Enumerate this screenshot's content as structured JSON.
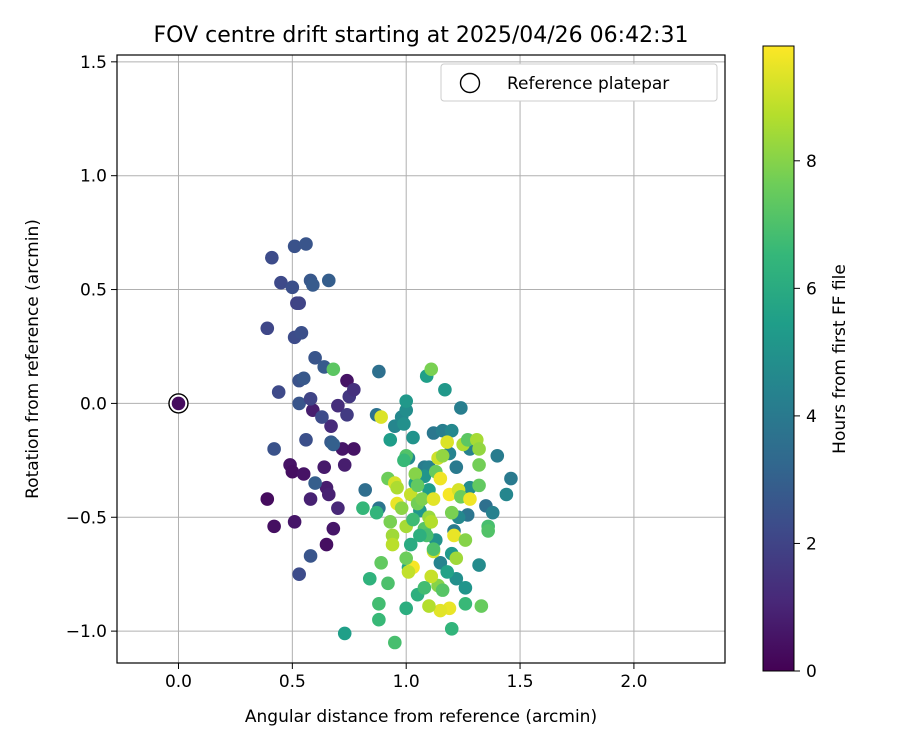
{
  "chart_data": {
    "type": "scatter",
    "title": "FOV centre drift starting at 2025/04/26 06:42:31",
    "xlabel": "Angular distance from reference (arcmin)",
    "ylabel": "Rotation from reference (arcmin)",
    "xlim": [
      -0.27,
      2.4
    ],
    "ylim": [
      -1.14,
      1.53
    ],
    "xticks": [
      0.0,
      0.5,
      1.0,
      1.5,
      2.0
    ],
    "xtick_labels": [
      "0.0",
      "0.5",
      "1.0",
      "1.5",
      "2.0"
    ],
    "yticks": [
      -1.0,
      -0.5,
      0.0,
      0.5,
      1.0,
      1.5
    ],
    "ytick_labels": [
      "−1.0",
      "−0.5",
      "0.0",
      "0.5",
      "1.0",
      "1.5"
    ],
    "grid": true,
    "legend": {
      "position": "top-right",
      "entries": [
        "Reference platepar"
      ]
    },
    "reference_point": {
      "x": 0.0,
      "y": 0.0,
      "c": 0.3
    },
    "colorbar": {
      "label": "Hours from first FF file",
      "colormap": "viridis",
      "range": [
        0,
        9.8
      ],
      "ticks": [
        0,
        2,
        4,
        6,
        8
      ],
      "tick_labels": [
        "0",
        "2",
        "4",
        "6",
        "8"
      ]
    },
    "points": [
      {
        "x": 0.39,
        "y": -0.42,
        "c": 0.3
      },
      {
        "x": 0.42,
        "y": -0.54,
        "c": 0.4
      },
      {
        "x": 0.49,
        "y": -0.27,
        "c": 0.5
      },
      {
        "x": 0.5,
        "y": -0.3,
        "c": 0.4
      },
      {
        "x": 0.51,
        "y": -0.52,
        "c": 0.6
      },
      {
        "x": 0.55,
        "y": -0.31,
        "c": 0.5
      },
      {
        "x": 0.59,
        "y": -0.03,
        "c": 0.8
      },
      {
        "x": 0.58,
        "y": -0.42,
        "c": 0.9
      },
      {
        "x": 0.64,
        "y": -0.28,
        "c": 0.7
      },
      {
        "x": 0.65,
        "y": -0.37,
        "c": 0.8
      },
      {
        "x": 0.66,
        "y": -0.4,
        "c": 0.9
      },
      {
        "x": 0.65,
        "y": -0.62,
        "c": 0.4
      },
      {
        "x": 0.68,
        "y": -0.55,
        "c": 0.6
      },
      {
        "x": 0.7,
        "y": -0.46,
        "c": 1.1
      },
      {
        "x": 0.72,
        "y": -0.2,
        "c": 0.6
      },
      {
        "x": 0.73,
        "y": -0.27,
        "c": 0.8
      },
      {
        "x": 0.74,
        "y": 0.1,
        "c": 0.5
      },
      {
        "x": 0.77,
        "y": -0.2,
        "c": 0.5
      },
      {
        "x": 0.7,
        "y": -0.01,
        "c": 1.3
      },
      {
        "x": 0.67,
        "y": -0.1,
        "c": 1.2
      },
      {
        "x": 0.75,
        "y": 0.03,
        "c": 1.6
      },
      {
        "x": 0.77,
        "y": 0.06,
        "c": 1.4
      },
      {
        "x": 0.74,
        "y": -0.05,
        "c": 1.7
      },
      {
        "x": 0.41,
        "y": 0.64,
        "c": 2.3
      },
      {
        "x": 0.51,
        "y": 0.69,
        "c": 2.5
      },
      {
        "x": 0.56,
        "y": 0.7,
        "c": 2.6
      },
      {
        "x": 0.45,
        "y": 0.53,
        "c": 2.2
      },
      {
        "x": 0.5,
        "y": 0.51,
        "c": 2.4
      },
      {
        "x": 0.58,
        "y": 0.54,
        "c": 2.7
      },
      {
        "x": 0.59,
        "y": 0.52,
        "c": 2.8
      },
      {
        "x": 0.66,
        "y": 0.54,
        "c": 2.9
      },
      {
        "x": 0.39,
        "y": 0.33,
        "c": 2.1
      },
      {
        "x": 0.52,
        "y": 0.44,
        "c": 1.9
      },
      {
        "x": 0.53,
        "y": 0.44,
        "c": 2.0
      },
      {
        "x": 0.51,
        "y": 0.29,
        "c": 2.3
      },
      {
        "x": 0.54,
        "y": 0.31,
        "c": 2.4
      },
      {
        "x": 0.6,
        "y": 0.2,
        "c": 2.6
      },
      {
        "x": 0.64,
        "y": 0.16,
        "c": 2.8
      },
      {
        "x": 0.53,
        "y": 0.1,
        "c": 2.5
      },
      {
        "x": 0.55,
        "y": 0.11,
        "c": 2.7
      },
      {
        "x": 0.44,
        "y": 0.05,
        "c": 2.2
      },
      {
        "x": 0.53,
        "y": 0.0,
        "c": 2.6
      },
      {
        "x": 0.58,
        "y": 0.02,
        "c": 2.0
      },
      {
        "x": 0.63,
        "y": -0.06,
        "c": 2.3
      },
      {
        "x": 0.67,
        "y": -0.17,
        "c": 2.8
      },
      {
        "x": 0.42,
        "y": -0.2,
        "c": 2.5
      },
      {
        "x": 0.56,
        "y": -0.16,
        "c": 2.4
      },
      {
        "x": 0.6,
        "y": -0.35,
        "c": 2.9
      },
      {
        "x": 0.58,
        "y": -0.67,
        "c": 2.6
      },
      {
        "x": 0.53,
        "y": -0.75,
        "c": 2.3
      },
      {
        "x": 0.68,
        "y": -0.18,
        "c": 3.0
      },
      {
        "x": 0.88,
        "y": 0.14,
        "c": 3.6
      },
      {
        "x": 0.87,
        "y": -0.05,
        "c": 3.7
      },
      {
        "x": 0.82,
        "y": -0.38,
        "c": 3.5
      },
      {
        "x": 0.88,
        "y": -0.46,
        "c": 3.8
      },
      {
        "x": 0.95,
        "y": -0.1,
        "c": 4.5
      },
      {
        "x": 0.98,
        "y": -0.06,
        "c": 4.6
      },
      {
        "x": 1.0,
        "y": -0.03,
        "c": 4.8
      },
      {
        "x": 1.0,
        "y": 0.01,
        "c": 5.2
      },
      {
        "x": 0.99,
        "y": -0.09,
        "c": 4.9
      },
      {
        "x": 0.93,
        "y": -0.16,
        "c": 5.4
      },
      {
        "x": 1.03,
        "y": -0.15,
        "c": 5.0
      },
      {
        "x": 1.01,
        "y": -0.24,
        "c": 4.7
      },
      {
        "x": 1.08,
        "y": -0.28,
        "c": 4.1
      },
      {
        "x": 1.1,
        "y": -0.28,
        "c": 4.3
      },
      {
        "x": 1.12,
        "y": -0.13,
        "c": 3.9
      },
      {
        "x": 1.16,
        "y": -0.12,
        "c": 4.2
      },
      {
        "x": 1.2,
        "y": -0.12,
        "c": 4.6
      },
      {
        "x": 1.19,
        "y": -0.22,
        "c": 4.4
      },
      {
        "x": 1.22,
        "y": -0.28,
        "c": 4.0
      },
      {
        "x": 1.24,
        "y": -0.02,
        "c": 4.2
      },
      {
        "x": 1.17,
        "y": 0.06,
        "c": 5.2
      },
      {
        "x": 1.09,
        "y": 0.12,
        "c": 5.5
      },
      {
        "x": 1.28,
        "y": -0.2,
        "c": 4.3
      },
      {
        "x": 1.27,
        "y": -0.49,
        "c": 3.8
      },
      {
        "x": 1.35,
        "y": -0.45,
        "c": 3.6
      },
      {
        "x": 1.4,
        "y": -0.23,
        "c": 4.1
      },
      {
        "x": 1.38,
        "y": -0.48,
        "c": 4.3
      },
      {
        "x": 1.44,
        "y": -0.4,
        "c": 4.5
      },
      {
        "x": 1.46,
        "y": -0.33,
        "c": 4.0
      },
      {
        "x": 1.28,
        "y": -0.37,
        "c": 4.8
      },
      {
        "x": 1.23,
        "y": -0.5,
        "c": 4.6
      },
      {
        "x": 1.21,
        "y": -0.56,
        "c": 4.1
      },
      {
        "x": 1.15,
        "y": -0.7,
        "c": 4.4
      },
      {
        "x": 1.22,
        "y": -0.77,
        "c": 4.9
      },
      {
        "x": 1.32,
        "y": -0.71,
        "c": 4.7
      },
      {
        "x": 1.26,
        "y": -0.81,
        "c": 5.1
      },
      {
        "x": 1.2,
        "y": -0.66,
        "c": 5.3
      },
      {
        "x": 1.18,
        "y": -0.74,
        "c": 5.6
      },
      {
        "x": 1.13,
        "y": -0.6,
        "c": 5.0
      },
      {
        "x": 1.06,
        "y": -0.47,
        "c": 5.2
      },
      {
        "x": 1.1,
        "y": -0.38,
        "c": 5.4
      },
      {
        "x": 1.04,
        "y": -0.35,
        "c": 5.6
      },
      {
        "x": 1.08,
        "y": -0.32,
        "c": 5.1
      },
      {
        "x": 0.73,
        "y": -1.01,
        "c": 5.5
      },
      {
        "x": 1.01,
        "y": -0.72,
        "c": 5.8
      },
      {
        "x": 1.02,
        "y": -0.62,
        "c": 6.0
      },
      {
        "x": 1.05,
        "y": -0.84,
        "c": 6.2
      },
      {
        "x": 1.0,
        "y": -0.9,
        "c": 6.1
      },
      {
        "x": 0.84,
        "y": -0.77,
        "c": 6.3
      },
      {
        "x": 0.68,
        "y": 0.15,
        "c": 7.3
      },
      {
        "x": 0.89,
        "y": -0.06,
        "c": 9.3
      },
      {
        "x": 0.92,
        "y": -0.33,
        "c": 7.6
      },
      {
        "x": 0.93,
        "y": -0.52,
        "c": 7.8
      },
      {
        "x": 0.94,
        "y": -0.58,
        "c": 8.4
      },
      {
        "x": 0.94,
        "y": -0.62,
        "c": 8.8
      },
      {
        "x": 0.95,
        "y": -0.35,
        "c": 9.2
      },
      {
        "x": 0.96,
        "y": -0.37,
        "c": 8.6
      },
      {
        "x": 0.96,
        "y": -0.44,
        "c": 9.5
      },
      {
        "x": 0.98,
        "y": -0.46,
        "c": 8.1
      },
      {
        "x": 1.0,
        "y": -0.54,
        "c": 8.5
      },
      {
        "x": 1.0,
        "y": -0.23,
        "c": 7.1
      },
      {
        "x": 1.02,
        "y": -0.4,
        "c": 9.0
      },
      {
        "x": 1.04,
        "y": -0.31,
        "c": 8.0
      },
      {
        "x": 1.05,
        "y": -0.36,
        "c": 7.4
      },
      {
        "x": 1.05,
        "y": -0.44,
        "c": 7.7
      },
      {
        "x": 1.07,
        "y": -0.42,
        "c": 7.9
      },
      {
        "x": 1.08,
        "y": -0.55,
        "c": 7.2
      },
      {
        "x": 1.09,
        "y": -0.58,
        "c": 6.9
      },
      {
        "x": 1.1,
        "y": -0.5,
        "c": 8.3
      },
      {
        "x": 1.11,
        "y": -0.52,
        "c": 8.7
      },
      {
        "x": 1.12,
        "y": -0.42,
        "c": 9.4
      },
      {
        "x": 1.13,
        "y": -0.3,
        "c": 7.5
      },
      {
        "x": 1.14,
        "y": -0.24,
        "c": 9.1
      },
      {
        "x": 1.15,
        "y": -0.33,
        "c": 9.6
      },
      {
        "x": 1.16,
        "y": -0.23,
        "c": 8.2
      },
      {
        "x": 1.18,
        "y": -0.17,
        "c": 9.3
      },
      {
        "x": 1.19,
        "y": -0.4,
        "c": 9.7
      },
      {
        "x": 1.2,
        "y": -0.48,
        "c": 7.8
      },
      {
        "x": 1.21,
        "y": -0.58,
        "c": 9.5
      },
      {
        "x": 1.22,
        "y": -0.68,
        "c": 8.4
      },
      {
        "x": 1.23,
        "y": -0.38,
        "c": 9.2
      },
      {
        "x": 1.24,
        "y": -0.41,
        "c": 7.6
      },
      {
        "x": 1.25,
        "y": -0.18,
        "c": 8.6
      },
      {
        "x": 1.26,
        "y": -0.6,
        "c": 8.0
      },
      {
        "x": 1.27,
        "y": -0.16,
        "c": 7.3
      },
      {
        "x": 1.28,
        "y": -0.42,
        "c": 9.6
      },
      {
        "x": 1.31,
        "y": -0.16,
        "c": 8.5
      },
      {
        "x": 1.32,
        "y": -0.2,
        "c": 8.2
      },
      {
        "x": 1.32,
        "y": -0.27,
        "c": 7.7
      },
      {
        "x": 1.32,
        "y": -0.36,
        "c": 7.4
      },
      {
        "x": 1.36,
        "y": -0.54,
        "c": 6.9
      },
      {
        "x": 1.36,
        "y": -0.56,
        "c": 7.1
      },
      {
        "x": 1.33,
        "y": -0.89,
        "c": 7.5
      },
      {
        "x": 1.26,
        "y": -0.88,
        "c": 6.6
      },
      {
        "x": 1.2,
        "y": -0.99,
        "c": 6.4
      },
      {
        "x": 1.19,
        "y": -0.9,
        "c": 9.5
      },
      {
        "x": 1.15,
        "y": -0.91,
        "c": 9.4
      },
      {
        "x": 1.1,
        "y": -0.89,
        "c": 8.7
      },
      {
        "x": 1.14,
        "y": -0.8,
        "c": 8.0
      },
      {
        "x": 1.16,
        "y": -0.82,
        "c": 7.2
      },
      {
        "x": 1.11,
        "y": -0.76,
        "c": 9.0
      },
      {
        "x": 1.08,
        "y": -0.81,
        "c": 6.8
      },
      {
        "x": 1.12,
        "y": -0.65,
        "c": 9.1
      },
      {
        "x": 1.12,
        "y": -0.64,
        "c": 7.0
      },
      {
        "x": 1.03,
        "y": -0.72,
        "c": 9.7
      },
      {
        "x": 1.01,
        "y": -0.74,
        "c": 8.9
      },
      {
        "x": 1.0,
        "y": -0.68,
        "c": 7.6
      },
      {
        "x": 0.92,
        "y": -0.79,
        "c": 7.0
      },
      {
        "x": 0.89,
        "y": -0.7,
        "c": 7.4
      },
      {
        "x": 0.88,
        "y": -0.88,
        "c": 6.8
      },
      {
        "x": 0.88,
        "y": -0.95,
        "c": 6.6
      },
      {
        "x": 0.95,
        "y": -1.05,
        "c": 6.9
      },
      {
        "x": 1.11,
        "y": 0.15,
        "c": 7.8
      },
      {
        "x": 1.03,
        "y": -0.51,
        "c": 6.7
      },
      {
        "x": 0.87,
        "y": -0.48,
        "c": 6.4
      },
      {
        "x": 0.81,
        "y": -0.46,
        "c": 6.5
      },
      {
        "x": 0.99,
        "y": -0.25,
        "c": 6.6
      },
      {
        "x": 1.06,
        "y": -0.58,
        "c": 6.2
      }
    ]
  }
}
